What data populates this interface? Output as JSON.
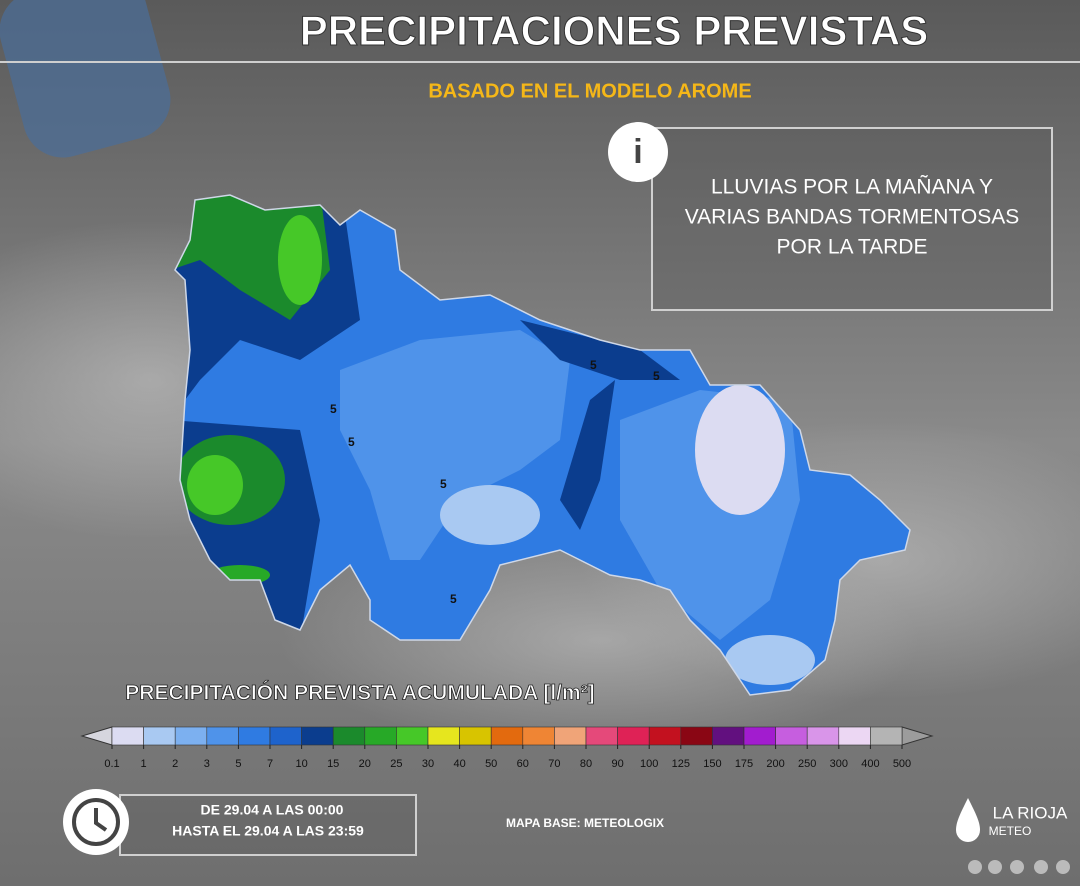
{
  "header": {
    "title": "PRECIPITACIONES PREVISTAS",
    "subtitle": "BASADO EN EL MODELO AROME"
  },
  "info": {
    "lines": [
      "LLUVIAS POR LA MAÑANA Y",
      "VARIAS BANDAS TORMENTOSAS",
      "POR LA TARDE"
    ]
  },
  "map": {
    "contour_labels": [
      "5",
      "5",
      "5",
      "5",
      "5",
      "5"
    ]
  },
  "legend": {
    "title": "PRECIPITACIÓN PREVISTA ACUMULADA [l/m²]",
    "ticks": [
      0.1,
      1,
      2,
      3,
      5,
      7,
      10,
      15,
      20,
      25,
      30,
      40,
      50,
      60,
      70,
      80,
      90,
      100,
      125,
      150,
      175,
      200,
      250,
      300,
      400,
      500
    ],
    "colors": [
      "#dcdcf2",
      "#a9c9f2",
      "#7cb0f0",
      "#4f93ea",
      "#2f7be2",
      "#1e63cc",
      "#0b3d8e",
      "#1b8a2c",
      "#27a927",
      "#46c828",
      "#e6e61e",
      "#d8c400",
      "#e36a0e",
      "#ef8534",
      "#f0a478",
      "#e5497a",
      "#df2256",
      "#c3111f",
      "#8a0614",
      "#62107f",
      "#a21ccf",
      "#c65edf",
      "#d995e9",
      "#ecd7f3",
      "#b4b4b4"
    ],
    "arrow_colors": [
      "#d6d6de",
      "#9c9c9c"
    ]
  },
  "footer": {
    "period": [
      "DE 29.04 A LAS 00:00",
      "HASTA EL 29.04 A LAS 23:59"
    ],
    "credit": "MAPA BASE: METEOLOGIX",
    "logo": [
      "LA RIOJA",
      "METEO"
    ]
  }
}
